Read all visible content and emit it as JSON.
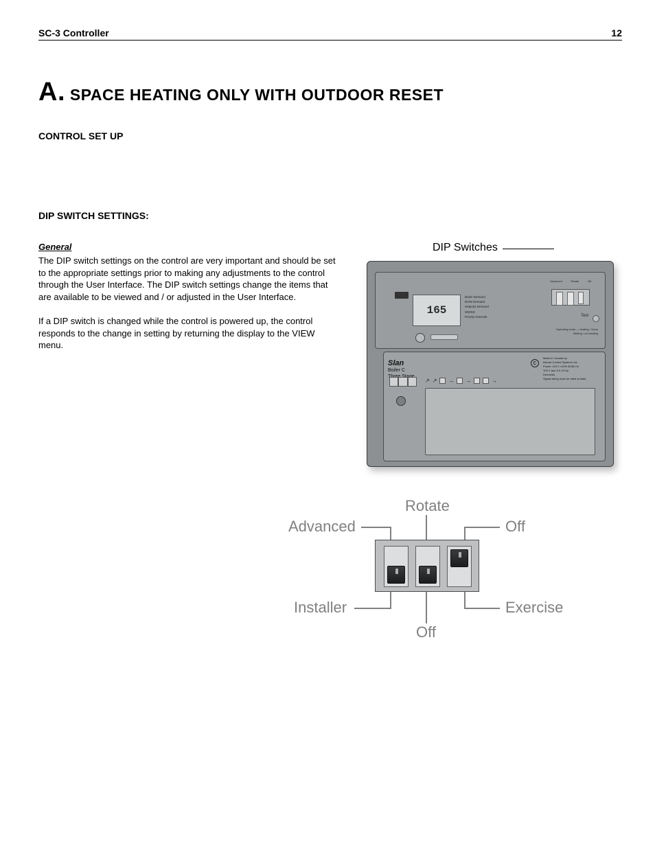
{
  "header": {
    "left": "SC-3 Controller",
    "page": "12"
  },
  "title": {
    "prefix": "A.",
    "text": "SPACE HEATING ONLY WITH OUTDOOR RESET"
  },
  "control_setup": "CONTROL SET UP",
  "dip_heading": "DIP SWITCH SETTINGS:",
  "general_label": "General",
  "para1": "The DIP switch settings on the control are very important and should be set to the appropriate settings prior to making any adjustments to the control through the User Interface. The DIP switch settings change the items that are available to be viewed and / or adjusted in the User Interface.",
  "para2": "If a DIP switch is changed while the control is powered up, the control responds to the change in setting by returning the display to the VIEW menu.",
  "controller": {
    "callout": "DIP Switches",
    "lcd_value": "165",
    "lcd_labels": [
      "Boiler Demand",
      "DHW Demand",
      "Setpoint Demand",
      "WWSD",
      "Priority Override"
    ],
    "test_label": "Test",
    "dip_top_labels": [
      "Advanced",
      "Rotate",
      "Off"
    ],
    "dip_bottom_labels": [
      "Installer",
      "Off",
      "Exercise"
    ],
    "status_line": "Operating mode — heating / Snow Melting / not heating",
    "brand": "Slan",
    "brand_sub": [
      "Boiler C",
      "Three Stage"
    ],
    "csa": "C",
    "info_lines": [
      "Made in Canada by",
      "tekmar Control Systems Ltd.",
      "Power: 115 V ±10% 50/60 Hz",
      "100 V (ac) 5 A 1/3 hp",
      "Demands",
      "Signal wiring must be rated at least"
    ]
  },
  "dip_detail": {
    "type": "diagram",
    "labels": {
      "top": "Rotate",
      "left_top": "Advanced",
      "right_top": "Off",
      "left_bottom": "Installer",
      "right_bottom": "Exercise",
      "bottom": "Off"
    },
    "switch_positions": [
      "down",
      "down",
      "up"
    ],
    "colors": {
      "label": "#808080",
      "box_fill": "#bdbfc1",
      "box_border": "#4a4c4d",
      "slot_fill": "#dcdedf",
      "knob_fill": "#2a2b2c",
      "leader": "#808080"
    },
    "label_fontsize": 22
  }
}
